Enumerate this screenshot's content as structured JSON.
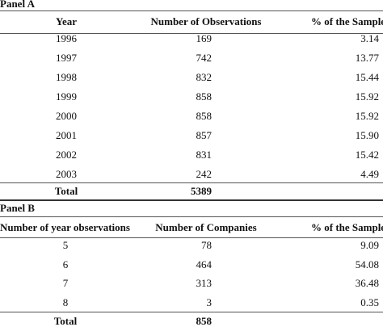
{
  "panel_a": {
    "label": "Panel A",
    "header": [
      "Year",
      "Number of Observations",
      "% of the Sample"
    ],
    "rows": [
      [
        "1996",
        "169",
        "3.14"
      ],
      [
        "1997",
        "742",
        "13.77"
      ],
      [
        "1998",
        "832",
        "15.44"
      ],
      [
        "1999",
        "858",
        "15.92"
      ],
      [
        "2000",
        "858",
        "15.92"
      ],
      [
        "2001",
        "857",
        "15.90"
      ],
      [
        "2002",
        "831",
        "15.42"
      ],
      [
        "2003",
        "242",
        "4.49"
      ]
    ],
    "total": [
      "Total",
      "5389"
    ]
  },
  "panel_b": {
    "label": "Panel B",
    "header": [
      "Number of year observations",
      "Number of Companies",
      "% of the Sample"
    ],
    "rows": [
      [
        "5",
        "78",
        "9.09"
      ],
      [
        "6",
        "464",
        "54.08"
      ],
      [
        "7",
        "313",
        "36.48"
      ],
      [
        "8",
        "3",
        "0.35"
      ]
    ],
    "total": [
      "Total",
      "858"
    ]
  }
}
